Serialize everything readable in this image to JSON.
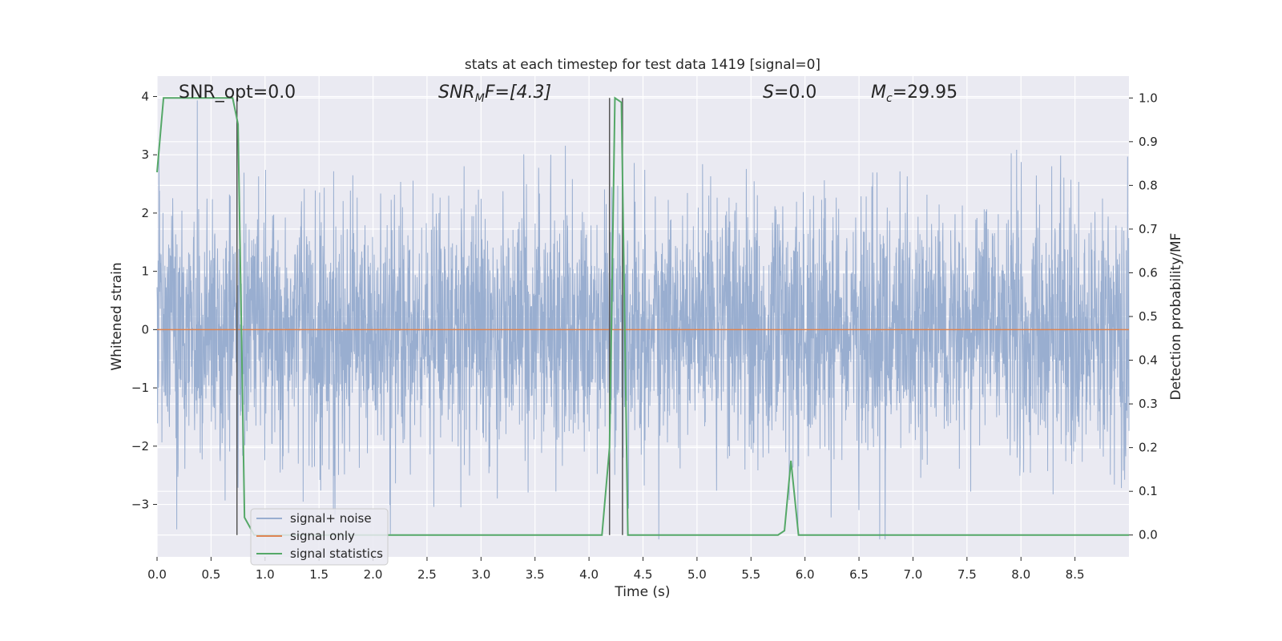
{
  "chart_data": {
    "type": "line",
    "title": "stats at each timestep for test data 1419 [signal=0]",
    "xlabel": "Time (s)",
    "ylabel": "Whitened strain",
    "y2label": "Detection probability/MF",
    "xlim": [
      0,
      9.0
    ],
    "ylim": [
      -3.9,
      4.35
    ],
    "y2lim": [
      -0.05,
      1.05
    ],
    "xticks": [
      "0.0",
      "0.5",
      "1.0",
      "1.5",
      "2.0",
      "2.5",
      "3.0",
      "3.5",
      "4.0",
      "4.5",
      "5.0",
      "5.5",
      "6.0",
      "6.5",
      "7.0",
      "7.5",
      "8.0",
      "8.5"
    ],
    "yticks": [
      "−3",
      "−2",
      "−1",
      "0",
      "1",
      "2",
      "3",
      "4"
    ],
    "y2ticks": [
      "0.0",
      "0.1",
      "0.2",
      "0.3",
      "0.4",
      "0.5",
      "0.6",
      "0.7",
      "0.8",
      "0.9",
      "1.0"
    ],
    "grid": true,
    "legend_position": "lower-left",
    "annotations": {
      "snr_opt": "SNR_opt=0.0",
      "snr_mf_prefix": "SNR",
      "snr_mf_sub": "M",
      "snr_mf_suffix": "F=[4.3]",
      "s_prefix": "S",
      "s_value": "=0.0",
      "mc_prefix": "M",
      "mc_sub": "c",
      "mc_value": "=29.95"
    },
    "series": [
      {
        "name": "signal+ noise",
        "color": "#99aed0",
        "kind": "noise",
        "duration": 9.0,
        "sigma": 1.0
      },
      {
        "name": "signal only",
        "color": "#dd8452",
        "x": [
          0,
          9.0
        ],
        "y": [
          0,
          0
        ]
      },
      {
        "name": "signal statistics",
        "color": "#55a868",
        "axis": "right",
        "x": [
          0.0,
          0.06,
          0.12,
          0.25,
          0.4,
          0.55,
          0.7,
          0.75,
          0.81,
          0.9,
          1.5,
          3.0,
          4.0,
          4.12,
          4.19,
          4.24,
          4.3,
          4.36,
          4.43,
          5.0,
          5.5,
          5.75,
          5.81,
          5.87,
          5.94,
          6.0,
          7.0,
          8.0,
          9.0
        ],
        "y": [
          0.83,
          1.0,
          1.0,
          1.0,
          1.0,
          1.0,
          1.0,
          0.94,
          0.04,
          0.0,
          0.0,
          0.0,
          0.0,
          0.0,
          0.2,
          1.0,
          0.99,
          0.0,
          0.0,
          0.0,
          0.0,
          0.0,
          0.01,
          0.17,
          0.0,
          0.0,
          0.0,
          0.0,
          0.0
        ]
      }
    ],
    "vlines": [
      0.74,
      4.19,
      4.31
    ]
  }
}
